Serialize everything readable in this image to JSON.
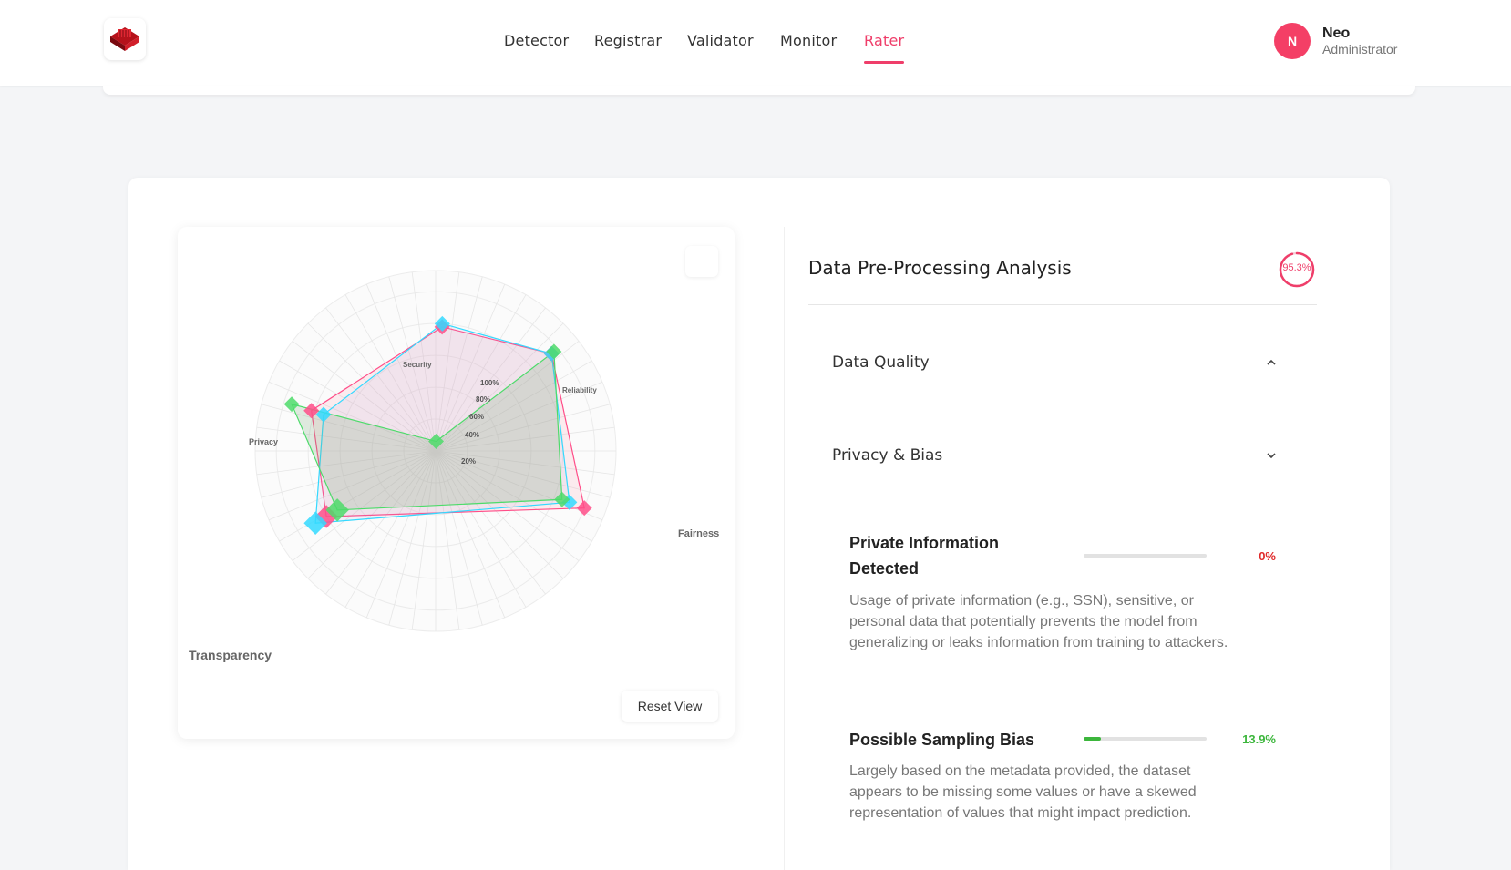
{
  "nav": {
    "items": [
      {
        "label": "Detector",
        "active": false
      },
      {
        "label": "Registrar",
        "active": false
      },
      {
        "label": "Validator",
        "active": false
      },
      {
        "label": "Monitor",
        "active": false
      },
      {
        "label": "Rater",
        "active": true
      }
    ],
    "accent": "#ef3e6a"
  },
  "user": {
    "initial": "N",
    "name": "Neo",
    "role": "Administrator",
    "avatar_color": "#f43f66"
  },
  "radar": {
    "reset_label": "Reset View",
    "ring_labels": [
      "20%",
      "40%",
      "60%",
      "80%",
      "100%"
    ]
  },
  "chart_data": {
    "type": "radar",
    "axes": [
      "Security",
      "Reliability",
      "Fairness",
      "Transparency",
      "Privacy"
    ],
    "range": [
      0,
      100
    ],
    "series": [
      {
        "color": "#ff4d88",
        "values": [
          78,
          95,
          100,
          80,
          82
        ]
      },
      {
        "color": "#33d9ff",
        "values": [
          80,
          95,
          90,
          88,
          74
        ]
      },
      {
        "color": "#4ddb6a",
        "values": [
          6,
          97,
          85,
          72,
          95
        ]
      }
    ]
  },
  "panel": {
    "title": "Data Pre-Processing Analysis",
    "score": "95.3%",
    "sections": [
      {
        "label": "Data Quality",
        "expanded": true
      },
      {
        "label": "Privacy & Bias",
        "expanded": false
      }
    ],
    "metrics": [
      {
        "title_line1": "Private Information",
        "title_line2": "Detected",
        "value": "0%",
        "fraction": 0.0,
        "value_color": "#e02a2a",
        "desc_lines": [
          "Usage of private information (e.g., SSN), sensitive, or",
          "personal data that potentially prevents the model from",
          "generalizing or leaks information from training to attackers."
        ]
      },
      {
        "title": "Possible Sampling Bias",
        "value": "13.9%",
        "fraction": 0.139,
        "value_color": "#3cb63c",
        "desc_lines": [
          "Largely based on the metadata provided, the dataset",
          "appears to be missing some values or have a skewed",
          "representation of values that might impact prediction."
        ]
      }
    ]
  }
}
